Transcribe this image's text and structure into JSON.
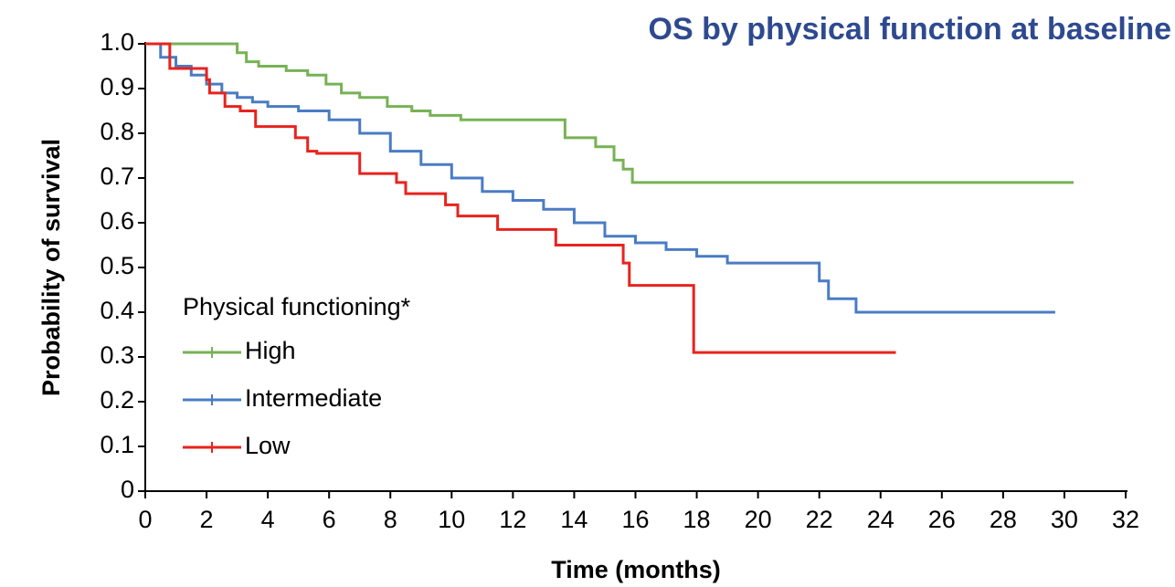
{
  "chart_data": {
    "type": "line",
    "step": true,
    "title": "OS by physical function at baseline",
    "x_label": "Time (months)",
    "y_label": "Probability of survival",
    "legend_title": "Physical functioning*",
    "legend_position": "lower left",
    "xlim": [
      0,
      32
    ],
    "xticks": [
      0,
      2,
      4,
      6,
      8,
      10,
      12,
      14,
      16,
      18,
      20,
      22,
      24,
      26,
      28,
      30,
      32
    ],
    "ylim": [
      0,
      1
    ],
    "yticks": [
      0,
      0.1,
      0.2,
      0.3,
      0.4,
      0.5,
      0.6,
      0.7,
      0.8,
      0.9,
      {
        "value": 1,
        "label": "1.0"
      }
    ],
    "series": [
      {
        "name": "High",
        "color": "#77b255",
        "x": [
          0,
          3.0,
          3.3,
          3.7,
          4.6,
          5.3,
          5.9,
          6.4,
          7.0,
          7.9,
          8.7,
          9.3,
          10.3,
          13.7,
          14.7,
          15.3,
          15.6,
          15.9,
          30.3
        ],
        "values": [
          1.0,
          0.98,
          0.96,
          0.95,
          0.94,
          0.93,
          0.91,
          0.89,
          0.88,
          0.86,
          0.85,
          0.84,
          0.83,
          0.79,
          0.77,
          0.74,
          0.72,
          0.69,
          0.69
        ]
      },
      {
        "name": "Intermediate",
        "color": "#4a7cc4",
        "x": [
          0,
          0.5,
          1,
          1.5,
          2,
          2.5,
          3,
          3.5,
          4,
          5,
          6,
          7,
          8,
          9,
          10,
          11,
          12,
          13,
          14,
          15,
          16,
          17,
          18,
          19,
          22,
          22.3,
          23.2,
          29.7
        ],
        "values": [
          1.0,
          0.97,
          0.95,
          0.93,
          0.91,
          0.89,
          0.88,
          0.87,
          0.86,
          0.85,
          0.83,
          0.8,
          0.76,
          0.73,
          0.7,
          0.67,
          0.65,
          0.63,
          0.6,
          0.57,
          0.555,
          0.54,
          0.525,
          0.51,
          0.47,
          0.43,
          0.4,
          0.4
        ]
      },
      {
        "name": "Low",
        "color": "#e8231e",
        "x": [
          0,
          0.8,
          2.0,
          2.1,
          2.6,
          3.1,
          3.6,
          4.9,
          5.3,
          5.6,
          7.0,
          8.2,
          8.5,
          9.8,
          10.2,
          11.5,
          13.4,
          15.6,
          15.8,
          17.9,
          24.5
        ],
        "values": [
          1.0,
          0.945,
          0.92,
          0.89,
          0.86,
          0.85,
          0.815,
          0.79,
          0.76,
          0.755,
          0.71,
          0.69,
          0.665,
          0.64,
          0.615,
          0.585,
          0.55,
          0.51,
          0.46,
          0.31,
          0.31
        ]
      }
    ]
  }
}
